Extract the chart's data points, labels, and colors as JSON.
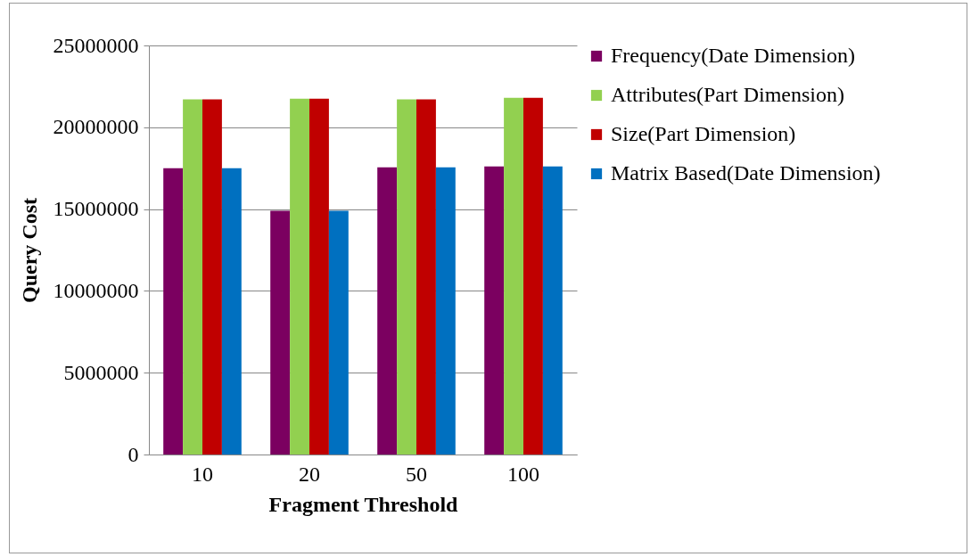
{
  "chart_data": {
    "type": "bar",
    "xlabel": "Fragment Threshold",
    "ylabel": "Query Cost",
    "categories": [
      "10",
      "20",
      "50",
      "100"
    ],
    "series": [
      {
        "name": "Frequency(Date Dimension)",
        "color": "#7b0060",
        "values": [
          17500000,
          14900000,
          17550000,
          17600000
        ]
      },
      {
        "name": "Attributes(Part Dimension)",
        "color": "#92d050",
        "values": [
          21700000,
          21750000,
          21700000,
          21800000
        ]
      },
      {
        "name": "Size(Part Dimension)",
        "color": "#c00000",
        "values": [
          21700000,
          21750000,
          21700000,
          21800000
        ]
      },
      {
        "name": "Matrix Based(Date Dimension)",
        "color": "#0070c0",
        "values": [
          17500000,
          14900000,
          17550000,
          17600000
        ]
      }
    ],
    "ylim": [
      0,
      25000000
    ],
    "yticks": [
      0,
      5000000,
      10000000,
      15000000,
      20000000,
      25000000
    ],
    "grid": "y",
    "legend": "right"
  }
}
